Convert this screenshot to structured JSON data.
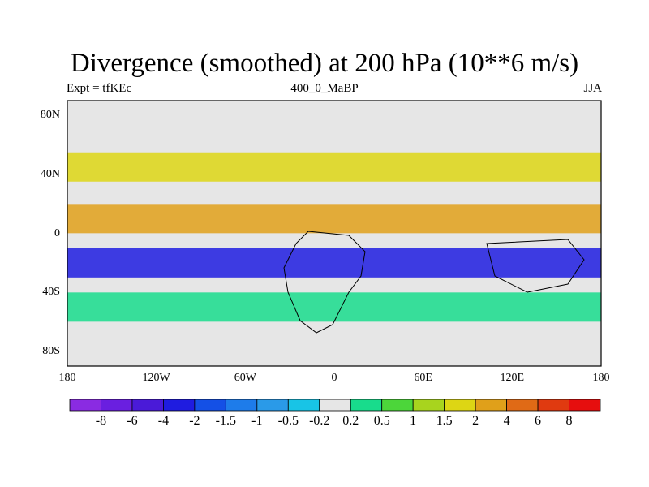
{
  "title": "Divergence (smoothed) at 200 hPa (10**6 m/s)",
  "subtitle_left": "Expt = tfKEc",
  "subtitle_center": "400_0_MaBP",
  "subtitle_right": "JJA",
  "chart_data": {
    "type": "heatmap",
    "projection": "cylindrical equidistant",
    "xlim": [
      -180,
      180
    ],
    "ylim": [
      -90,
      90
    ],
    "x_ticks": [
      {
        "value": -180,
        "label": "180"
      },
      {
        "value": -120,
        "label": "120W"
      },
      {
        "value": -60,
        "label": "60W"
      },
      {
        "value": 0,
        "label": "0"
      },
      {
        "value": 60,
        "label": "60E"
      },
      {
        "value": 120,
        "label": "120E"
      },
      {
        "value": 180,
        "label": "180"
      }
    ],
    "y_ticks": [
      {
        "value": 80,
        "label": "80N"
      },
      {
        "value": 40,
        "label": "40N"
      },
      {
        "value": 0,
        "label": "0"
      },
      {
        "value": -40,
        "label": "40S"
      },
      {
        "value": -80,
        "label": "80S"
      }
    ],
    "colorbar": {
      "levels": [
        "-8",
        "-6",
        "-4",
        "-2",
        "-1.5",
        "-1",
        "-0.5",
        "-0.2",
        "0.2",
        "0.5",
        "1",
        "1.5",
        "2",
        "4",
        "6",
        "8"
      ],
      "colors": [
        "#8a2be2",
        "#6a1fe0",
        "#4a1ad8",
        "#1f1ce0",
        "#1450e6",
        "#1e7cea",
        "#2a9ae8",
        "#18c4e6",
        "#e6e6e6",
        "#18dc8c",
        "#4cd63a",
        "#a8d41e",
        "#ddd614",
        "#e0a01a",
        "#e06a16",
        "#e03a10",
        "#e60e0e"
      ]
    },
    "field_bands": [
      {
        "lat": 45,
        "level": 2,
        "desc": "positive band"
      },
      {
        "lat": 10,
        "level": 4,
        "desc": "strong positive band"
      },
      {
        "lat": -20,
        "level": -2,
        "desc": "strong negative band"
      },
      {
        "lat": -50,
        "level": 0.5,
        "desc": "weak positive patches"
      }
    ]
  }
}
